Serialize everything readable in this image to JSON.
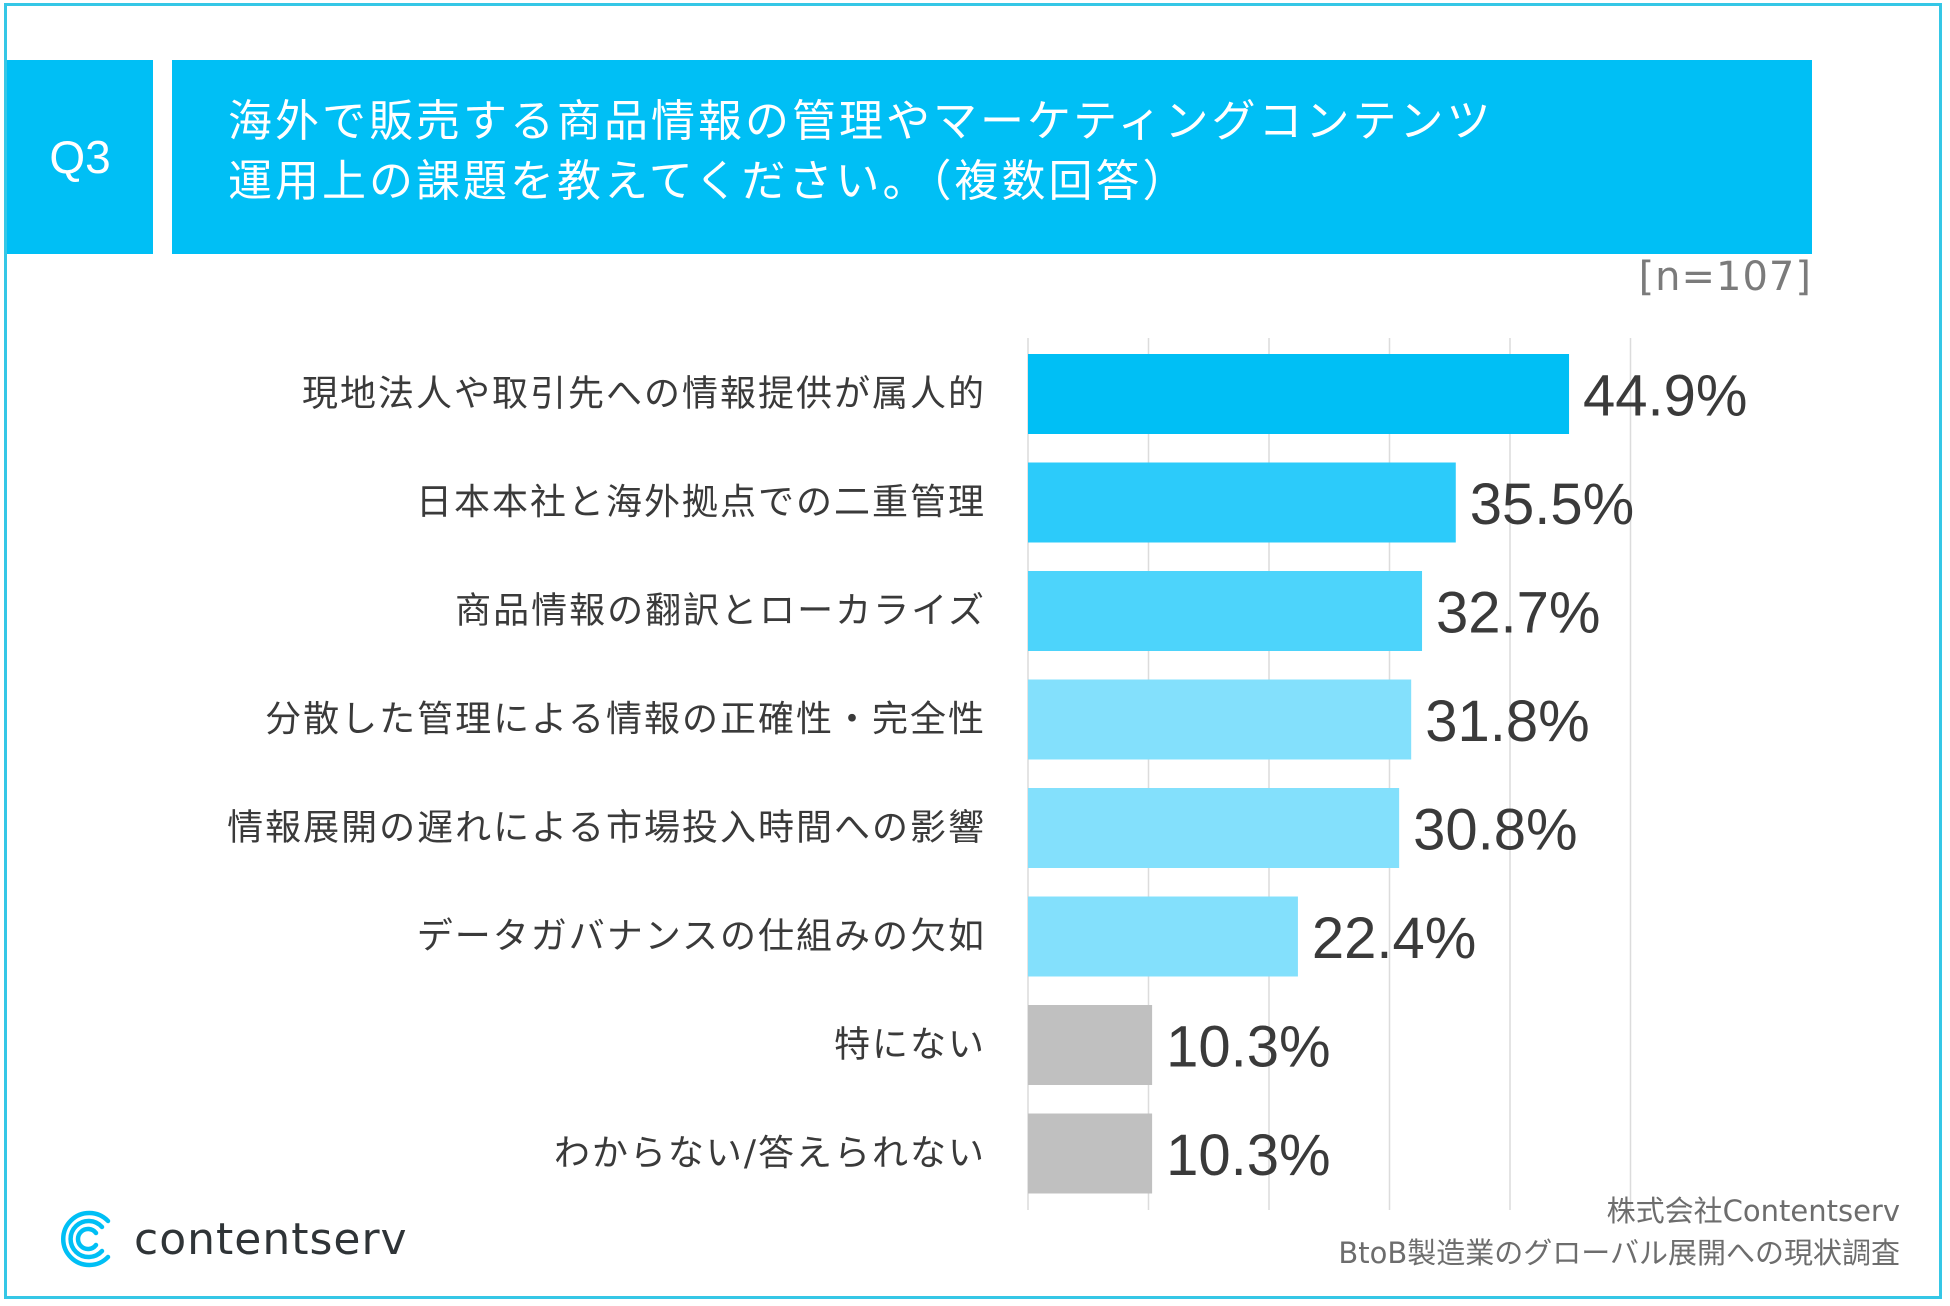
{
  "header": {
    "badge": "Q3",
    "title_line1": "海外で販売する商品情報の管理やマーケティングコンテンツ",
    "title_line2": "運用上の課題を教えてください。（複数回答）"
  },
  "sample_size": "[n=107]",
  "chart_data": {
    "type": "bar",
    "orientation": "horizontal",
    "title": "海外で販売する商品情報の管理やマーケティングコンテンツ運用上の課題を教えてください。（複数回答）",
    "categories": [
      "現地法人や取引先への情報提供が属人的",
      "日本本社と海外拠点での二重管理",
      "商品情報の翻訳とローカライズ",
      "分散した管理による情報の正確性・完全性",
      "情報展開の遅れによる市場投入時間への影響",
      "データガバナンスの仕組みの欠如",
      "特にない",
      "わからない/答えられない"
    ],
    "values": [
      44.9,
      35.5,
      32.7,
      31.8,
      30.8,
      22.4,
      10.3,
      10.3
    ],
    "value_labels": [
      "44.9%",
      "35.5%",
      "32.7%",
      "31.8%",
      "30.8%",
      "22.4%",
      "10.3%",
      "10.3%"
    ],
    "colors": [
      "#00bff5",
      "#2ccbfa",
      "#4dd4fb",
      "#83e0fc",
      "#83e0fc",
      "#83e0fc",
      "#c0c0c0",
      "#c0c0c0"
    ],
    "xlim": [
      0,
      50
    ],
    "grid": true,
    "unit": "%"
  },
  "footer": {
    "logo_text": "contentserv",
    "source_line1": "株式会社Contentserv",
    "source_line2": "BtoB製造業のグローバル展開への現状調査"
  }
}
